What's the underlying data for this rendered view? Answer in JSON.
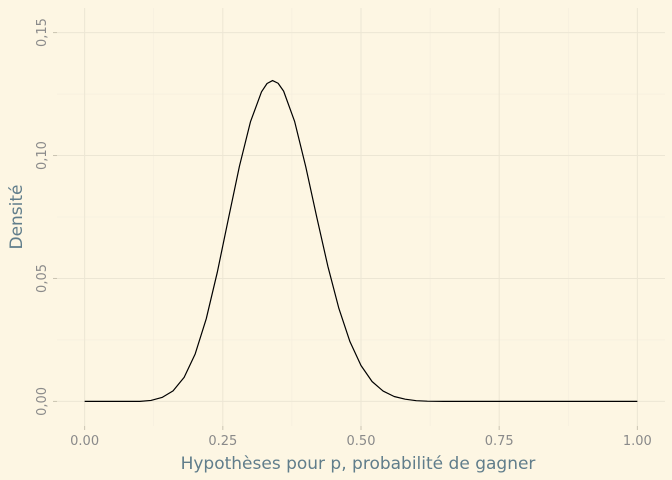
{
  "chart_data": {
    "type": "line",
    "title": "",
    "xlabel": "Hypothèses pour p, probabilité de gagner",
    "ylabel": "Densité",
    "xlim": [
      -0.05,
      1.05
    ],
    "ylim": [
      -0.01,
      0.16
    ],
    "xticks": [
      0.0,
      0.25,
      0.5,
      0.75,
      1.0
    ],
    "xtick_labels": [
      "0.00",
      "0.25",
      "0.50",
      "0.75",
      "1.00"
    ],
    "yticks": [
      0.0,
      0.05,
      0.1,
      0.15
    ],
    "ytick_labels": [
      "0,00",
      "0,05",
      "0,10",
      "0,15"
    ],
    "grid": true,
    "line_color": "#000000",
    "series": [
      {
        "x": [
          0.0,
          0.1,
          0.12,
          0.14,
          0.16,
          0.18,
          0.2,
          0.22,
          0.24,
          0.26,
          0.28,
          0.3,
          0.32,
          0.33,
          0.34,
          0.35,
          0.36,
          0.38,
          0.4,
          0.42,
          0.44,
          0.46,
          0.48,
          0.5,
          0.52,
          0.54,
          0.56,
          0.58,
          0.6,
          0.62,
          0.65,
          0.7,
          1.0
        ],
        "y": [
          0.0,
          0.0,
          0.0004,
          0.0016,
          0.0043,
          0.0098,
          0.0193,
          0.0336,
          0.0525,
          0.0742,
          0.0956,
          0.1137,
          0.1259,
          0.1293,
          0.1305,
          0.1294,
          0.1262,
          0.1138,
          0.0955,
          0.0749,
          0.055,
          0.0378,
          0.0243,
          0.0146,
          0.0081,
          0.0042,
          0.002,
          0.0009,
          0.0003,
          0.0001,
          0.0,
          0.0,
          0.0
        ]
      }
    ]
  }
}
